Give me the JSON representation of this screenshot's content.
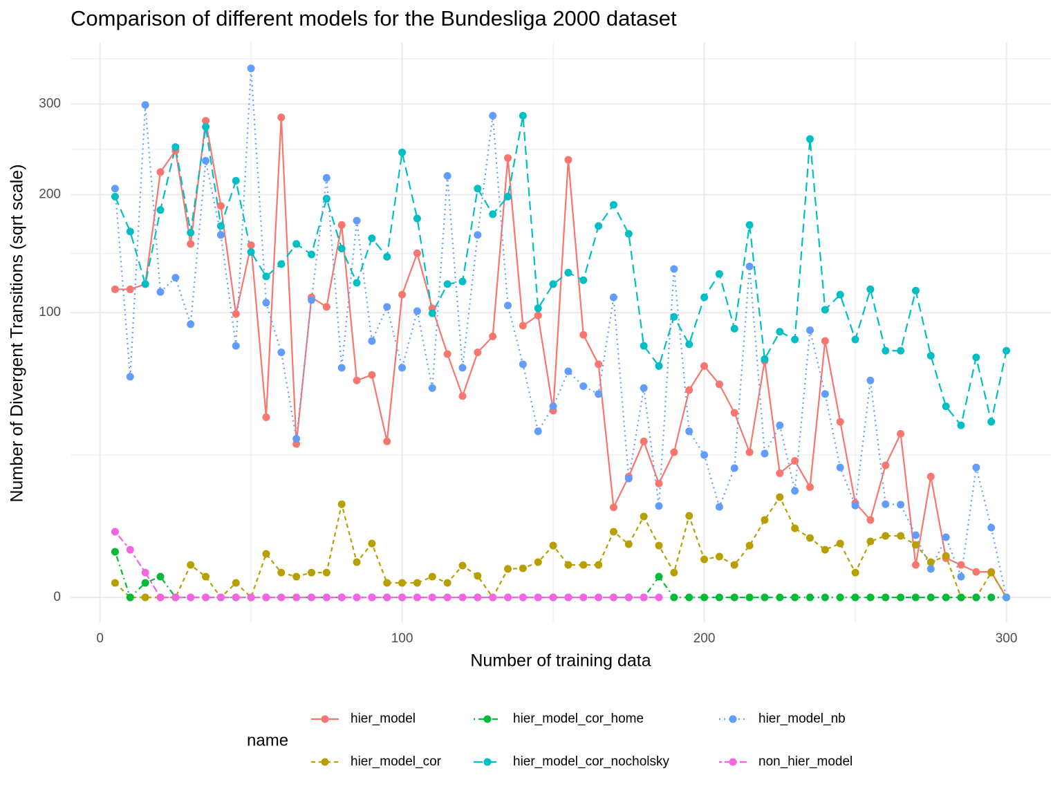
{
  "chart_data": {
    "type": "line",
    "title": "Comparison of different models for the Bundesliga 2000 dataset",
    "xlabel": "Number of training data",
    "ylabel": "Number of Divergent Transitions (sqrt scale)",
    "legend_title": "name",
    "legend": "bottom",
    "yscale": "sqrt",
    "grid": true,
    "xlim": [
      -9.75,
      314.75
    ],
    "xticks": [
      0,
      100,
      200,
      300
    ],
    "ylim": [
      0,
      380
    ],
    "yticks": [
      0,
      100,
      200,
      300
    ],
    "x": [
      5,
      10,
      15,
      20,
      25,
      30,
      35,
      40,
      45,
      50,
      55,
      60,
      65,
      70,
      75,
      80,
      85,
      90,
      95,
      100,
      105,
      110,
      115,
      120,
      125,
      130,
      135,
      140,
      145,
      150,
      155,
      160,
      165,
      170,
      175,
      180,
      185,
      190,
      195,
      200,
      205,
      210,
      215,
      220,
      225,
      230,
      235,
      240,
      245,
      250,
      255,
      260,
      265,
      270,
      275,
      280,
      285,
      290,
      295,
      300
    ],
    "series": [
      {
        "name": "hier_model",
        "color": "#F8766D",
        "dash": "solid",
        "values": [
          117,
          117,
          121,
          223,
          246,
          154,
          280,
          189,
          99,
          153,
          40,
          284,
          29,
          111,
          104,
          171,
          58,
          61,
          30,
          113,
          146,
          103,
          73,
          50,
          74,
          84,
          238,
          91,
          98,
          43,
          236,
          85,
          67,
          10,
          18,
          30,
          16,
          26,
          53,
          66,
          56,
          42,
          26,
          69,
          19,
          23,
          15,
          81,
          38,
          11,
          7.4,
          21.5,
          33,
          1.3,
          18,
          1.9,
          1.3,
          0.8,
          0.8,
          0
        ]
      },
      {
        "name": "hier_model_cor",
        "color": "#B79F00",
        "dash": "dashed",
        "values": [
          0.26,
          0,
          0,
          0,
          0,
          1.3,
          0.53,
          0,
          0.26,
          0,
          2.34,
          0.76,
          0.53,
          0.76,
          0.76,
          10.7,
          1.53,
          3.58,
          0.26,
          0.26,
          0.26,
          0.53,
          0.26,
          1.25,
          0.57,
          0,
          1.0,
          1.04,
          1.53,
          3.31,
          1.3,
          1.3,
          1.3,
          5.32,
          3.49,
          8.06,
          3.31,
          0.76,
          8.2,
          1.78,
          2.05,
          1.3,
          3.31,
          7.39,
          12.4,
          5.89,
          4.36,
          2.8,
          3.58,
          0.76,
          3.87,
          4.67,
          4.67,
          3.4,
          1.53,
          2.12,
          0,
          0,
          0.76,
          0
        ]
      },
      {
        "name": "hier_model_cor_home",
        "color": "#00BA38",
        "dash": "dotdash",
        "values": [
          2.57,
          0,
          0.26,
          0.53,
          0,
          0,
          0,
          0,
          0,
          0,
          0,
          0,
          0,
          0,
          0,
          0,
          0,
          0,
          0,
          0,
          0,
          0,
          0,
          0,
          0,
          0,
          0,
          0,
          0,
          0,
          0,
          0,
          0,
          0,
          0,
          0,
          0.53,
          0,
          0,
          0,
          0,
          0,
          0,
          0,
          0,
          0,
          0,
          0,
          0,
          0,
          0,
          0,
          0,
          0,
          0,
          0,
          0,
          0,
          0,
          0
        ]
      },
      {
        "name": "hier_model_cor_nocholsky",
        "color": "#00BFC4",
        "dash": "longdash",
        "values": [
          198,
          165,
          121,
          185,
          250,
          164,
          273,
          170,
          214,
          147,
          127,
          137,
          154,
          145,
          196,
          150,
          122,
          159,
          143,
          244,
          177,
          99.5,
          121,
          123,
          206,
          181,
          198,
          286,
          103,
          121,
          130,
          124,
          170,
          190,
          163,
          78,
          66,
          97,
          79,
          111,
          129,
          89,
          171,
          70,
          87,
          82,
          259,
          102,
          113,
          82,
          117,
          75,
          75,
          116,
          72,
          45,
          36.5,
          71,
          38,
          75
        ]
      },
      {
        "name": "hier_model_nb",
        "color": "#619CFF",
        "dash": "dotted",
        "values": [
          206,
          60,
          299,
          115,
          126,
          92,
          235,
          162,
          78,
          345,
          107,
          74,
          31,
          109,
          217,
          65,
          175,
          81,
          104,
          65,
          101,
          54,
          219,
          65,
          162,
          286,
          105,
          67,
          34,
          45,
          63,
          55,
          51,
          111,
          17.4,
          54,
          10.3,
          133,
          34,
          25,
          10.1,
          20.6,
          135,
          25.5,
          36.5,
          14,
          88,
          51,
          20.8,
          10.4,
          58,
          10.7,
          10.6,
          4.77,
          1.0,
          4.46,
          0.53,
          20.8,
          6.0,
          0
        ]
      },
      {
        "name": "non_hier_model",
        "color": "#F564E3",
        "dash": "twodash",
        "values": [
          5.32,
          2.8,
          0.76,
          0,
          0,
          0,
          0,
          0,
          0,
          0,
          0,
          0,
          0,
          0,
          0,
          0,
          0,
          0,
          0,
          0,
          0,
          0,
          0,
          0,
          0,
          0,
          0,
          0,
          0,
          0,
          0,
          0,
          0,
          0,
          0,
          0,
          0,
          null,
          null,
          null,
          null,
          null,
          null,
          null,
          null,
          null,
          null,
          null,
          null,
          null,
          null,
          null,
          null,
          null,
          null,
          null,
          null,
          null,
          null,
          null
        ]
      }
    ]
  }
}
